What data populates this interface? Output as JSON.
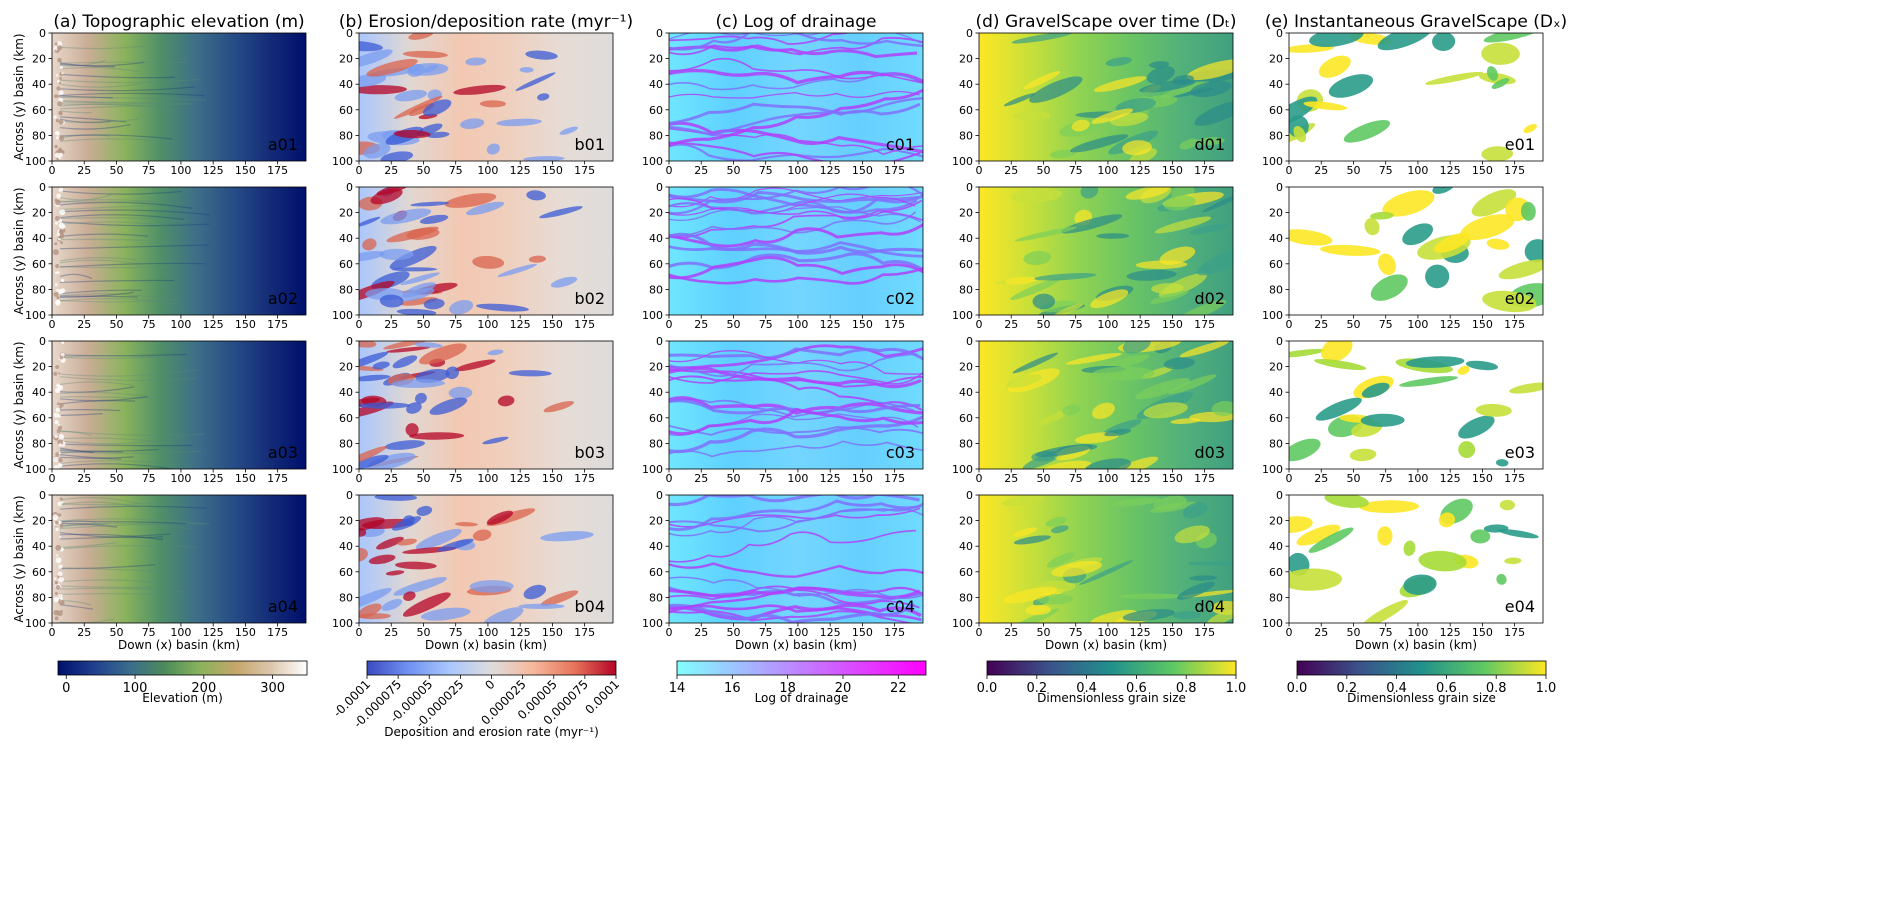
{
  "figure": {
    "columns": [
      {
        "id": "a",
        "title": "(a) Topographic elevation (m)",
        "cmap": "gist_earth"
      },
      {
        "id": "b",
        "title": "(b) Erosion/deposition rate (myr⁻¹)",
        "cmap": "coolwarm"
      },
      {
        "id": "c",
        "title": "(c) Log of drainage",
        "cmap": "cool"
      },
      {
        "id": "d",
        "title": "(d) GravelScape over time (Dₜ)",
        "cmap": "viridis"
      },
      {
        "id": "e",
        "title": "(e) Instantaneous GravelScape (Dₓ)",
        "cmap": "viridis"
      }
    ],
    "panel_labels": [
      [
        "a01",
        "b01",
        "c01",
        "d01",
        "e01"
      ],
      [
        "a02",
        "b02",
        "c02",
        "d02",
        "e02"
      ],
      [
        "a03",
        "b03",
        "c03",
        "d03",
        "e03"
      ],
      [
        "a04",
        "b04",
        "c04",
        "d04",
        "e04"
      ]
    ],
    "colors": {
      "background": "#ffffff",
      "axis": "#000000",
      "panel_label_a": "#aaaaaa"
    }
  },
  "chart_data": {
    "type": "heatmap",
    "layout": "grid 4 rows x 5 columns of map panels",
    "x_axis": {
      "label": "Down (x) basin (km)",
      "ticks": [
        0,
        25,
        50,
        75,
        100,
        125,
        150,
        175
      ],
      "range": [
        0,
        197
      ]
    },
    "y_axis": {
      "label": "Across (y) basin (km)",
      "ticks": [
        0,
        20,
        40,
        60,
        80,
        100
      ],
      "range": [
        0,
        100
      ],
      "inverted": true
    },
    "colorbars": [
      {
        "panel": "a",
        "label": "Elevation (m)",
        "ticks": [
          "0",
          "100",
          "200",
          "300"
        ],
        "range": [
          -12,
          350
        ],
        "colors": [
          "#000f6b",
          "#1f3f8f",
          "#3a6c8c",
          "#4d8b5c",
          "#8ab35c",
          "#c4a66a",
          "#dcc7ae",
          "#ffffff"
        ]
      },
      {
        "panel": "b",
        "label": "Deposition and erosion rate (myr⁻¹)",
        "ticks": [
          "-0.0001",
          "-0.000075",
          "-0.00005",
          "-0.000025",
          "0",
          "0.000025",
          "0.00005",
          "0.000075",
          "0.0001"
        ],
        "range": [
          -0.0001,
          0.0001
        ],
        "tick_rotation": -45,
        "colors": [
          "#3b4cc0",
          "#7092f3",
          "#aac7fd",
          "#dddcdc",
          "#f7b89c",
          "#e7745b",
          "#b40426"
        ]
      },
      {
        "panel": "c",
        "label": "Log of drainage",
        "ticks": [
          "14",
          "16",
          "18",
          "20",
          "22"
        ],
        "range": [
          14,
          23
        ],
        "colors": [
          "#80ffff",
          "#ff00ff"
        ]
      },
      {
        "panel": "d",
        "label": "Dimensionless grain size",
        "ticks": [
          "0.0",
          "0.2",
          "0.4",
          "0.6",
          "0.8",
          "1.0"
        ],
        "range": [
          0,
          1
        ],
        "colors": [
          "#440154",
          "#3b528b",
          "#21918c",
          "#5ec962",
          "#fde725"
        ]
      },
      {
        "panel": "e",
        "label": "Dimensionless grain size",
        "ticks": [
          "0.0",
          "0.2",
          "0.4",
          "0.6",
          "0.8",
          "1.0"
        ],
        "range": [
          0,
          1
        ],
        "colors": [
          "#440154",
          "#3b528b",
          "#21918c",
          "#5ec962",
          "#fde725"
        ]
      }
    ]
  }
}
